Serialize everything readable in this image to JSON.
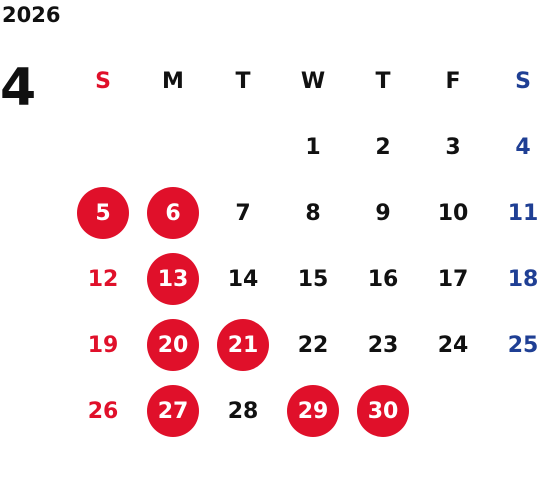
{
  "calendar": {
    "year": "2026",
    "month": "4",
    "weekdays": [
      "S",
      "M",
      "T",
      "W",
      "T",
      "F",
      "S"
    ],
    "weeks": [
      [
        "",
        "",
        "",
        "1",
        "2",
        "3",
        "4"
      ],
      [
        "5",
        "6",
        "7",
        "8",
        "9",
        "10",
        "11"
      ],
      [
        "12",
        "13",
        "14",
        "15",
        "16",
        "17",
        "18"
      ],
      [
        "19",
        "20",
        "21",
        "22",
        "23",
        "24",
        "25"
      ],
      [
        "26",
        "27",
        "28",
        "29",
        "30",
        "",
        ""
      ]
    ],
    "highlighted_days": [
      "5",
      "6",
      "13",
      "20",
      "21",
      "27",
      "29",
      "30"
    ],
    "colors": {
      "sunday": "#e0102a",
      "saturday": "#1f3f94",
      "weekday": "#111111",
      "highlight": "#e0102a",
      "highlight_text": "#ffffff"
    }
  }
}
